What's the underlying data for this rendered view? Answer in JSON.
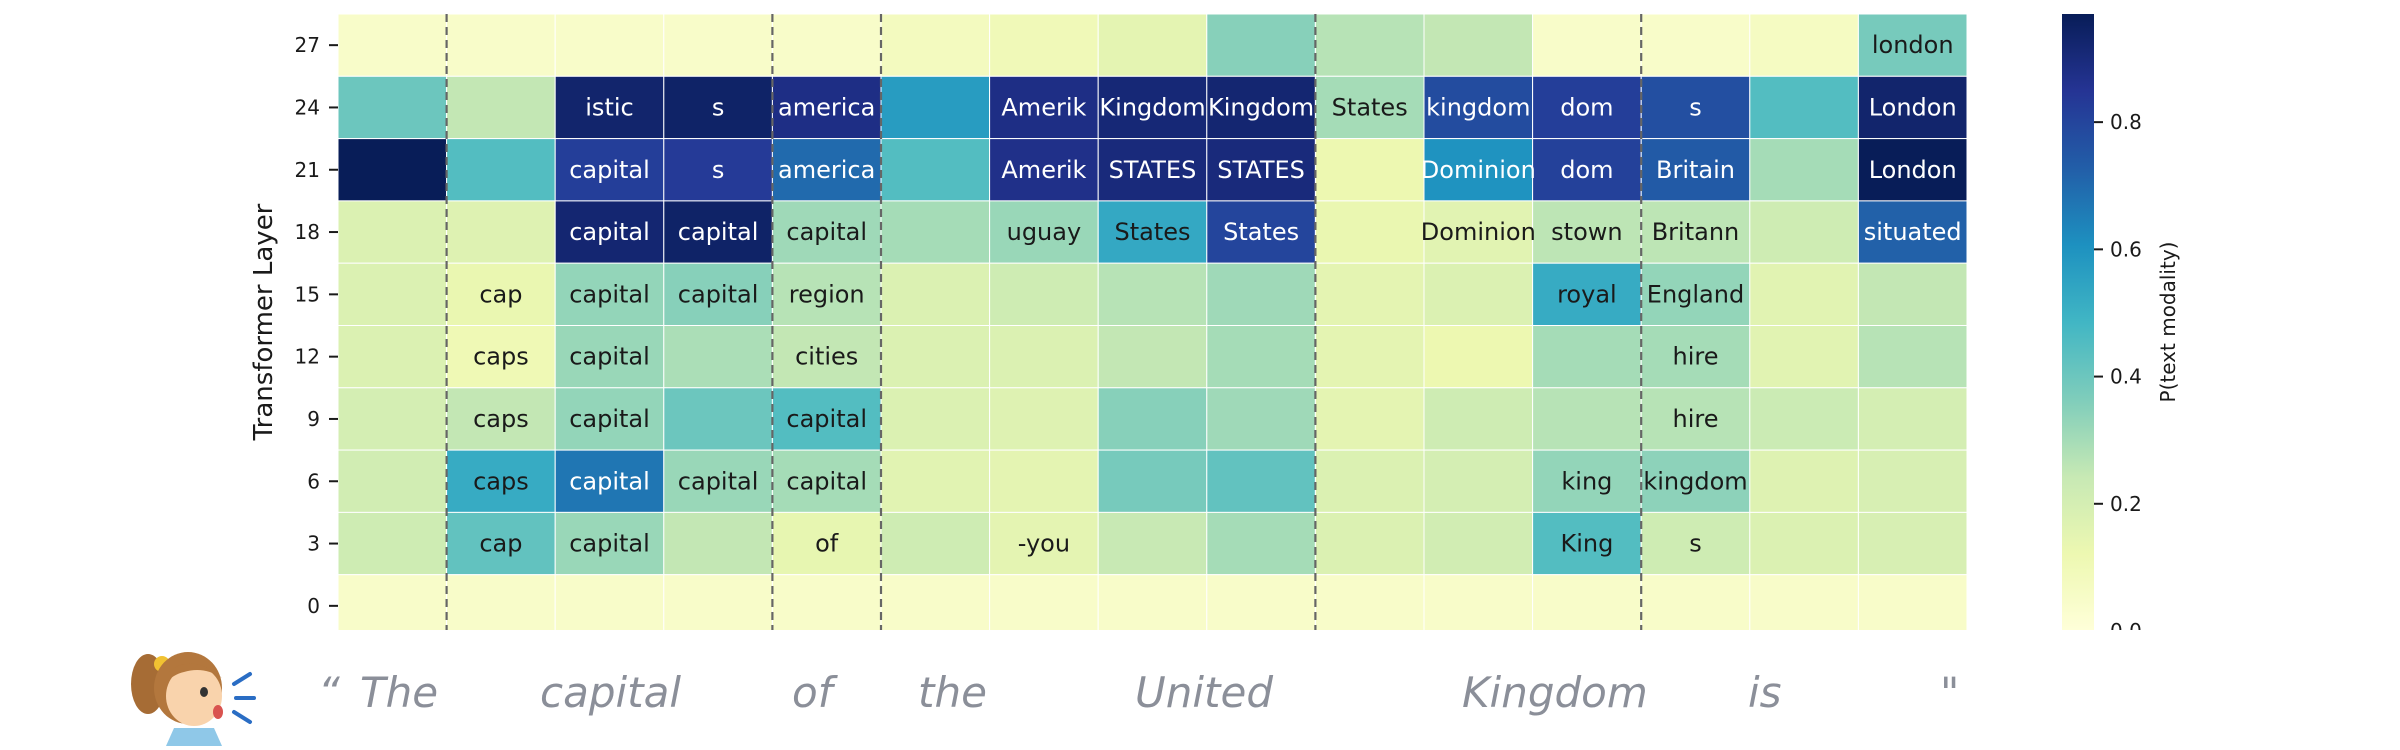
{
  "chart_data": {
    "type": "heatmap",
    "ylabel": "Transformer Layer",
    "colorbar_label": "P(text modality)",
    "colorbar_ticks": [
      "0.0",
      "0.2",
      "0.4",
      "0.6",
      "0.8"
    ],
    "colorbar_range": [
      0.0,
      0.97
    ],
    "colormap": "YlGnBu",
    "layers": [
      27,
      24,
      21,
      18,
      15,
      12,
      9,
      6,
      3,
      0
    ],
    "token_columns": 15,
    "values": [
      [
        0.05,
        0.05,
        0.05,
        0.05,
        0.05,
        0.08,
        0.1,
        0.15,
        0.35,
        0.27,
        0.25,
        0.05,
        0.05,
        0.07,
        0.38
      ],
      [
        0.4,
        0.25,
        0.93,
        0.94,
        0.88,
        0.57,
        0.88,
        0.91,
        0.92,
        0.3,
        0.78,
        0.82,
        0.77,
        0.45,
        0.93
      ],
      [
        0.97,
        0.45,
        0.82,
        0.83,
        0.7,
        0.45,
        0.87,
        0.9,
        0.9,
        0.12,
        0.6,
        0.81,
        0.74,
        0.3,
        0.97
      ],
      [
        0.18,
        0.17,
        0.92,
        0.94,
        0.31,
        0.3,
        0.32,
        0.53,
        0.8,
        0.13,
        0.16,
        0.26,
        0.26,
        0.22,
        0.72
      ],
      [
        0.18,
        0.13,
        0.33,
        0.35,
        0.27,
        0.18,
        0.22,
        0.27,
        0.31,
        0.15,
        0.18,
        0.52,
        0.33,
        0.16,
        0.25
      ],
      [
        0.18,
        0.11,
        0.32,
        0.29,
        0.25,
        0.18,
        0.18,
        0.25,
        0.3,
        0.15,
        0.12,
        0.3,
        0.3,
        0.16,
        0.27
      ],
      [
        0.2,
        0.25,
        0.33,
        0.4,
        0.45,
        0.18,
        0.17,
        0.35,
        0.31,
        0.15,
        0.22,
        0.27,
        0.27,
        0.23,
        0.2
      ],
      [
        0.21,
        0.52,
        0.67,
        0.32,
        0.3,
        0.16,
        0.15,
        0.38,
        0.42,
        0.18,
        0.2,
        0.33,
        0.34,
        0.17,
        0.19
      ],
      [
        0.22,
        0.42,
        0.32,
        0.25,
        0.14,
        0.22,
        0.15,
        0.24,
        0.3,
        0.18,
        0.21,
        0.45,
        0.22,
        0.18,
        0.19
      ],
      [
        0.05,
        0.05,
        0.05,
        0.05,
        0.05,
        0.05,
        0.05,
        0.05,
        0.05,
        0.05,
        0.05,
        0.05,
        0.05,
        0.05,
        0.05
      ]
    ],
    "cell_labels": [
      [
        "",
        "",
        "",
        "",
        "",
        "",
        "",
        "",
        "",
        "",
        "",
        "",
        "",
        "",
        "london"
      ],
      [
        "",
        "",
        "istic",
        "s",
        "america",
        "",
        "Amerik",
        "Kingdom",
        "Kingdom",
        "States",
        "kingdom",
        "dom",
        "s",
        "",
        "London"
      ],
      [
        "",
        "",
        "capital",
        "s",
        "america",
        "",
        "Amerik",
        "STATES",
        "STATES",
        "",
        "Dominion",
        "dom",
        "Britain",
        "",
        "London"
      ],
      [
        "",
        "",
        "capital",
        "capital",
        "capital",
        "",
        "uguay",
        "States",
        "States",
        "",
        "Dominion",
        "stown",
        "Britann",
        "",
        "situated"
      ],
      [
        "",
        "cap",
        "capital",
        "capital",
        "region",
        "",
        "",
        "",
        "",
        "",
        "",
        "royal",
        "England",
        "",
        ""
      ],
      [
        "",
        "caps",
        "capital",
        "",
        "cities",
        "",
        "",
        "",
        "",
        "",
        "",
        "",
        "hire",
        "",
        ""
      ],
      [
        "",
        "caps",
        "capital",
        "",
        "capital",
        "",
        "",
        "",
        "",
        "",
        "",
        "",
        "hire",
        "",
        ""
      ],
      [
        "",
        "caps",
        "capital",
        "capital",
        "capital",
        "",
        "",
        "",
        "",
        "",
        "",
        "king",
        "kingdom",
        "",
        ""
      ],
      [
        "",
        "cap",
        "capital",
        "",
        "of",
        "",
        "-you",
        "",
        "",
        "",
        "",
        "King",
        "s",
        "",
        ""
      ],
      [
        "",
        "",
        "",
        "",
        "",
        "",
        "",
        "",
        "",
        "",
        "",
        "",
        "",
        "",
        ""
      ]
    ],
    "word_boundaries_after_column": [
      1,
      4,
      5,
      9,
      12
    ],
    "utterance_words": [
      "“",
      "The",
      "capital",
      "of",
      "the",
      "United",
      "Kingdom",
      "is",
      "\""
    ]
  },
  "speaker_icon": "speaking-girl-icon"
}
